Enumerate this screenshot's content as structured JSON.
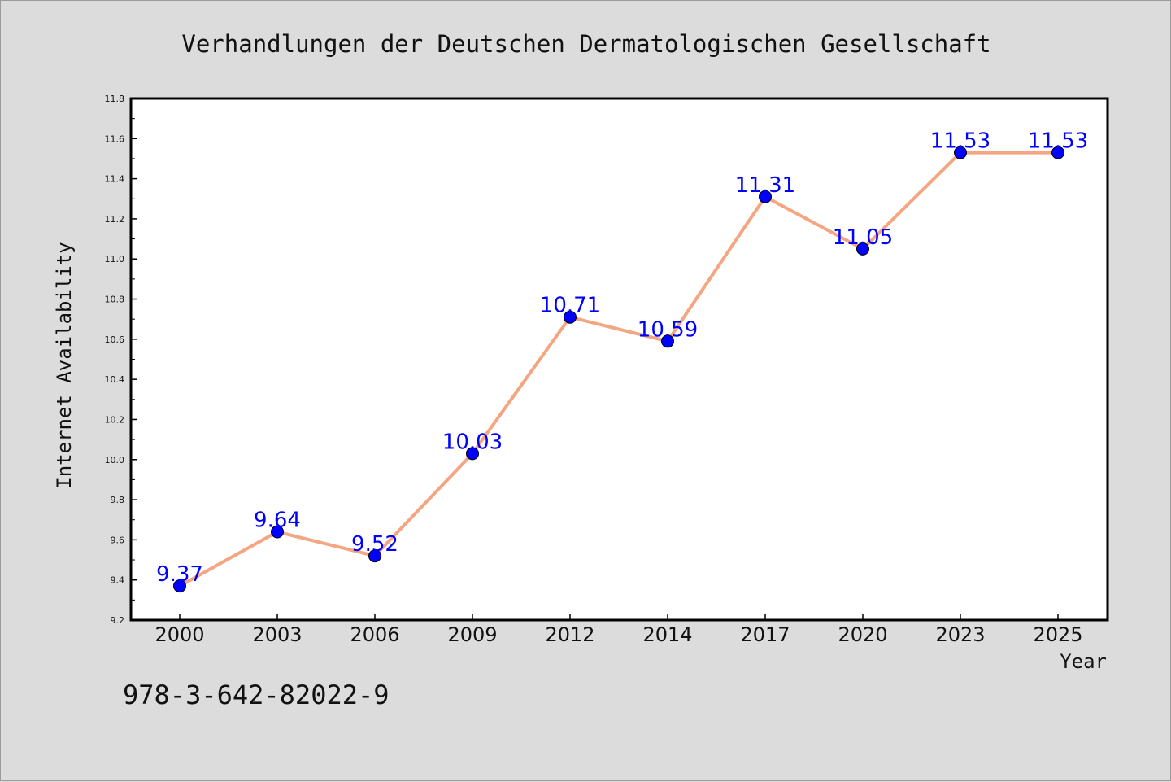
{
  "chart_data": {
    "type": "line",
    "title": "Verhandlungen der Deutschen Dermatologischen Gesellschaft",
    "xlabel": "Year",
    "ylabel": "Internet Availability",
    "categories": [
      "2000",
      "2003",
      "2006",
      "2009",
      "2012",
      "2014",
      "2017",
      "2020",
      "2023",
      "2025"
    ],
    "series": [
      {
        "values": [
          9.37,
          9.64,
          9.52,
          10.03,
          10.71,
          10.59,
          11.31,
          11.05,
          11.53,
          11.53
        ],
        "labels": [
          "9.37",
          "9.64",
          "9.52",
          "10.03",
          "10.71",
          "10.59",
          "11.31",
          "11.05",
          "11.53",
          "11.53"
        ],
        "line_color": "#f4a582",
        "marker_color": "#0000ff"
      }
    ],
    "ylim": [
      9.2,
      11.8
    ],
    "yticks": [
      "9.2",
      "9.4",
      "9.6",
      "9.8",
      "10.0",
      "10.2",
      "10.4",
      "10.6",
      "10.8",
      "11.0",
      "11.2",
      "11.4",
      "11.6",
      "11.8"
    ],
    "grid": false,
    "legend": "none"
  },
  "footnote": "978-3-642-82022-9",
  "colors": {
    "background": "#dcdcdc",
    "plot_background": "#ffffff",
    "label_color": "#0000ff"
  }
}
